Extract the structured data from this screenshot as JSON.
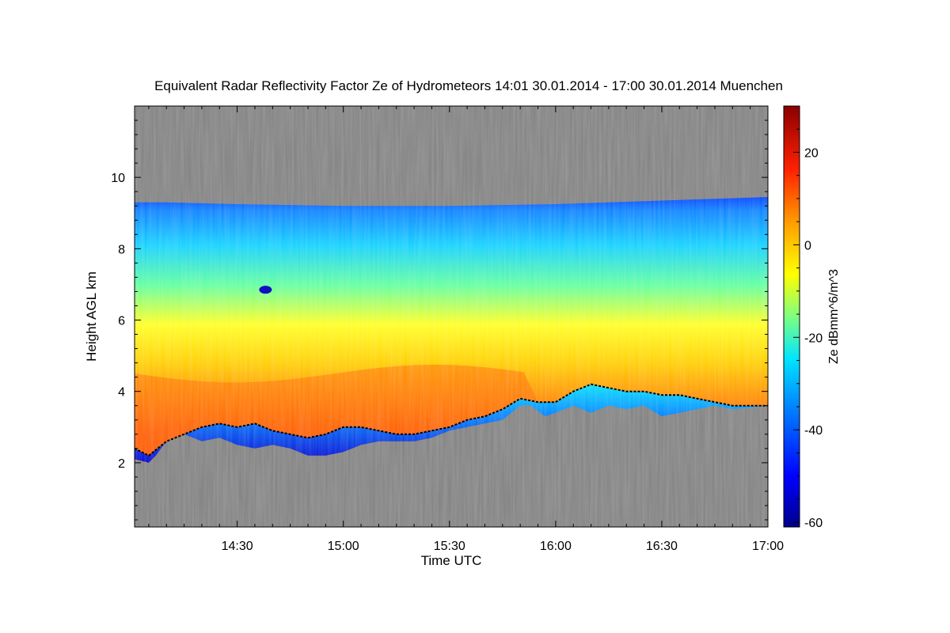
{
  "chart_data": {
    "type": "heatmap",
    "title": "Equivalent Radar Reflectivity Factor Ze of Hydrometeors   14:01 30.01.2014 - 17:00 30.01.2014 Muenchen",
    "xlabel": "Time UTC",
    "ylabel": "Height AGL km",
    "colorbar_label": "Ze dBmm^6/m^3",
    "x_range_min": [
      841,
      1020
    ],
    "xticks": [
      {
        "label": "14:30",
        "min": 870
      },
      {
        "label": "15:00",
        "min": 900
      },
      {
        "label": "15:30",
        "min": 930
      },
      {
        "label": "16:00",
        "min": 960
      },
      {
        "label": "16:30",
        "min": 990
      },
      {
        "label": "17:00",
        "min": 1020
      }
    ],
    "ylim": [
      0.2,
      12
    ],
    "yticks": [
      2,
      4,
      6,
      8,
      10
    ],
    "clim": [
      -61,
      30
    ],
    "cticks": [
      20,
      0,
      -20,
      -40,
      -60
    ],
    "cloud_top_km": [
      [
        841,
        9.3
      ],
      [
        850,
        9.3
      ],
      [
        870,
        9.25
      ],
      [
        900,
        9.2
      ],
      [
        930,
        9.2
      ],
      [
        960,
        9.25
      ],
      [
        990,
        9.35
      ],
      [
        1020,
        9.45
      ]
    ],
    "cloud_base_km": [
      [
        841,
        2.1
      ],
      [
        845,
        2.0
      ],
      [
        847,
        2.2
      ],
      [
        850,
        2.6
      ],
      [
        855,
        2.8
      ],
      [
        860,
        2.6
      ],
      [
        865,
        2.7
      ],
      [
        870,
        2.5
      ],
      [
        875,
        2.4
      ],
      [
        880,
        2.5
      ],
      [
        885,
        2.4
      ],
      [
        890,
        2.2
      ],
      [
        895,
        2.2
      ],
      [
        900,
        2.3
      ],
      [
        905,
        2.5
      ],
      [
        910,
        2.6
      ],
      [
        915,
        2.6
      ],
      [
        920,
        2.6
      ],
      [
        925,
        2.7
      ],
      [
        930,
        2.9
      ],
      [
        935,
        3.0
      ],
      [
        940,
        3.1
      ],
      [
        945,
        3.2
      ],
      [
        950,
        3.6
      ],
      [
        953,
        3.6
      ],
      [
        957,
        3.3
      ],
      [
        960,
        3.4
      ],
      [
        965,
        3.6
      ],
      [
        970,
        3.4
      ],
      [
        975,
        3.6
      ],
      [
        980,
        3.5
      ],
      [
        985,
        3.6
      ],
      [
        990,
        3.3
      ],
      [
        995,
        3.4
      ],
      [
        1000,
        3.5
      ],
      [
        1005,
        3.6
      ],
      [
        1010,
        3.5
      ],
      [
        1020,
        3.6
      ]
    ],
    "melting_layer_km": [
      [
        841,
        2.4
      ],
      [
        845,
        2.2
      ],
      [
        850,
        2.6
      ],
      [
        855,
        2.8
      ],
      [
        860,
        3.0
      ],
      [
        865,
        3.1
      ],
      [
        870,
        3.0
      ],
      [
        875,
        3.1
      ],
      [
        880,
        2.9
      ],
      [
        885,
        2.8
      ],
      [
        890,
        2.7
      ],
      [
        895,
        2.8
      ],
      [
        900,
        3.0
      ],
      [
        905,
        3.0
      ],
      [
        910,
        2.9
      ],
      [
        915,
        2.8
      ],
      [
        920,
        2.8
      ],
      [
        925,
        2.9
      ],
      [
        930,
        3.0
      ],
      [
        935,
        3.2
      ],
      [
        940,
        3.3
      ],
      [
        945,
        3.5
      ],
      [
        950,
        3.8
      ],
      [
        955,
        3.7
      ],
      [
        960,
        3.7
      ],
      [
        965,
        4.0
      ],
      [
        970,
        4.2
      ],
      [
        975,
        4.1
      ],
      [
        980,
        4.0
      ],
      [
        985,
        4.0
      ],
      [
        990,
        3.9
      ],
      [
        995,
        3.9
      ],
      [
        1000,
        3.8
      ],
      [
        1005,
        3.7
      ],
      [
        1010,
        3.6
      ],
      [
        1020,
        3.6
      ]
    ],
    "max_reflectivity_layer": {
      "time_range_min": [
        841,
        955
      ],
      "height_km": [
        3.0,
        4.5
      ],
      "ze_dbz": 10
    },
    "colors": {
      "no_signal": "#808080"
    }
  }
}
